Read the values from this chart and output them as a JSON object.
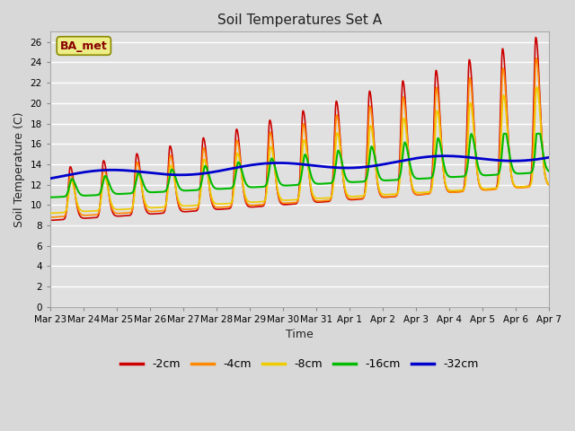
{
  "title": "Soil Temperatures Set A",
  "xlabel": "Time",
  "ylabel": "Soil Temperature (C)",
  "ylim": [
    0,
    27
  ],
  "yticks": [
    0,
    2,
    4,
    6,
    8,
    10,
    12,
    14,
    16,
    18,
    20,
    22,
    24,
    26
  ],
  "fig_bg_color": "#d8d8d8",
  "plot_bg_color": "#e0e0e0",
  "series_colors": {
    "-2cm": "#cc0000",
    "-4cm": "#ff8800",
    "-8cm": "#eecc00",
    "-16cm": "#00bb00",
    "-32cm": "#0000cc"
  },
  "series_linewidths": {
    "-2cm": 1.2,
    "-4cm": 1.2,
    "-8cm": 1.2,
    "-16cm": 1.5,
    "-32cm": 2.0
  },
  "annotation_text": "BA_met",
  "annotation_color": "#880000",
  "annotation_bg": "#eeee88",
  "annotation_border": "#888800",
  "xtick_positions": [
    0,
    1,
    2,
    3,
    4,
    5,
    6,
    7,
    8,
    9,
    10,
    11,
    12,
    13,
    14,
    15
  ],
  "xtick_labels": [
    "Mar 23",
    "Mar 24",
    "Mar 25",
    "Mar 26",
    "Mar 27",
    "Mar 28",
    "Mar 29",
    "Mar 30",
    "Mar 31",
    "Apr 1",
    "Apr 2",
    "Apr 3",
    "Apr 4",
    "Apr 5",
    "Apr 6",
    "Apr 7"
  ],
  "legend_entries": [
    "-2cm",
    "-4cm",
    "-8cm",
    "-16cm",
    "-32cm"
  ],
  "legend_colors": [
    "#cc0000",
    "#ff8800",
    "#eecc00",
    "#00bb00",
    "#0000cc"
  ]
}
